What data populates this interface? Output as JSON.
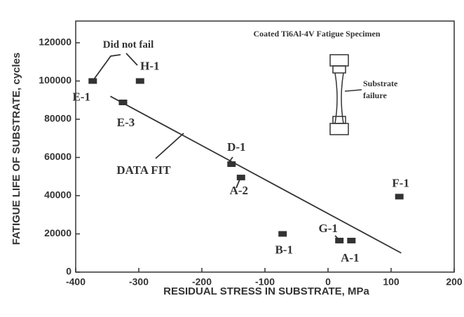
{
  "chart_data": {
    "type": "scatter",
    "x_label": "RESIDUAL STRESS IN SUBSTRATE, MPa",
    "y_label": "FATIGUE LIFE OF SUBSTRATE, cycles",
    "xlim": [
      -400,
      200
    ],
    "xticks": [
      -400,
      -300,
      -200,
      -100,
      0,
      100,
      200
    ],
    "ylim": [
      0,
      120000
    ],
    "yticks": [
      0,
      20000,
      40000,
      60000,
      80000,
      100000,
      120000
    ],
    "point_labels": [
      "E-1",
      "H-1",
      "E-3",
      "D-1",
      "A-2",
      "B-1",
      "G-1",
      "A-1",
      "F-1"
    ],
    "x": [
      -373,
      -298,
      -325,
      -153,
      -138,
      -72,
      18,
      37,
      113
    ],
    "values": [
      100000,
      100000,
      88800,
      56500,
      49500,
      20000,
      16500,
      16500,
      39500
    ],
    "color": "#333333",
    "fit": {
      "name": "DATA FIT",
      "x": [
        -345,
        116
      ],
      "values": [
        92000,
        10000
      ]
    },
    "annotations": {
      "did_not_fail": "Did not fail",
      "specimen": "Coated Ti6Al-4V Fatigue Specimen",
      "failure": [
        "Substrate",
        "failure"
      ]
    }
  }
}
